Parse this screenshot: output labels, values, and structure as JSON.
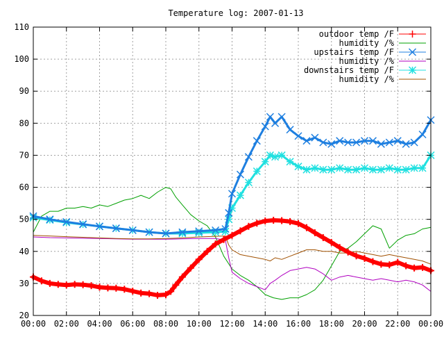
{
  "chart_data": {
    "type": "line",
    "title": "Temperature log: 2007-01-13",
    "xlabel": "",
    "ylabel": "",
    "grid": true,
    "legend_position": "top-right",
    "xlim": [
      0,
      24
    ],
    "ylim": [
      20,
      110
    ],
    "x_ticks": [
      "00:00",
      "02:00",
      "04:00",
      "06:00",
      "08:00",
      "10:00",
      "12:00",
      "14:00",
      "16:00",
      "18:00",
      "20:00",
      "22:00",
      "00:00"
    ],
    "y_ticks": [
      "20",
      "30",
      "40",
      "50",
      "60",
      "70",
      "80",
      "90",
      "100",
      "110"
    ],
    "series": [
      {
        "name": "outdoor temp /F",
        "color": "#ff0000",
        "style": "thick-line-plus",
        "x": [
          0,
          0.5,
          1,
          1.5,
          2,
          2.5,
          3,
          3.5,
          4,
          4.5,
          5,
          5.5,
          6,
          6.5,
          7,
          7.5,
          8,
          8.3,
          8.6,
          9,
          9.5,
          10,
          10.5,
          11,
          11.5,
          12,
          12.5,
          13,
          13.5,
          14,
          14.5,
          15,
          15.5,
          16,
          16.5,
          17,
          17.5,
          18,
          18.5,
          19,
          19.5,
          20,
          20.5,
          21,
          21.5,
          22,
          22.5,
          23,
          23.5,
          24
        ],
        "y": [
          32,
          30.8,
          30,
          29.7,
          29.5,
          29.7,
          29.6,
          29.3,
          28.8,
          28.6,
          28.5,
          28.2,
          27.6,
          27,
          26.8,
          26.3,
          26.5,
          27.5,
          29.5,
          32,
          34.8,
          37.5,
          40,
          42.3,
          43.7,
          45,
          46.4,
          47.8,
          48.8,
          49.5,
          49.7,
          49.6,
          49.3,
          48.7,
          47.4,
          45.8,
          44.3,
          42.8,
          41.2,
          39.8,
          38.6,
          37.8,
          36.8,
          36,
          35.8,
          36.6,
          35.5,
          34.8,
          35,
          34
        ]
      },
      {
        "name": "humidity /%",
        "color": "#00a000",
        "style": "thin",
        "x": [
          0,
          0.5,
          1,
          1.5,
          2,
          2.5,
          3,
          3.5,
          4,
          4.5,
          5,
          5.5,
          6,
          6.5,
          7,
          7.5,
          8,
          8.3,
          8.6,
          9,
          9.5,
          10,
          10.5,
          11,
          11.5,
          12,
          12.5,
          13,
          13.5,
          14,
          14.5,
          15,
          15.5,
          16,
          16.5,
          17,
          17.5,
          18,
          18.5,
          19,
          19.5,
          20,
          20.5,
          21,
          21.5,
          22,
          22.5,
          23,
          23.5,
          24
        ],
        "y": [
          46,
          51,
          52.5,
          52.5,
          53.5,
          53.5,
          54,
          53.5,
          54.5,
          54,
          55,
          56,
          56.5,
          57.5,
          56.5,
          58.5,
          60,
          59.5,
          57,
          54.5,
          51.5,
          49.5,
          48,
          44.5,
          38.5,
          34.5,
          32.5,
          31,
          29,
          26.5,
          25.5,
          25,
          25.5,
          25.5,
          26.5,
          28,
          31,
          35.5,
          40,
          41,
          43,
          45.5,
          48,
          47,
          41,
          43.5,
          45,
          45.5,
          47,
          47.5
        ]
      },
      {
        "name": "upstairs temp /F",
        "color": "#1e7fe0",
        "style": "thick-line-x",
        "x": [
          0,
          1,
          2,
          3,
          4,
          5,
          6,
          7,
          8,
          9,
          10,
          11,
          11.6,
          11.8,
          12,
          12.5,
          13,
          13.5,
          14,
          14.3,
          14.6,
          15,
          15.5,
          16,
          16.5,
          17,
          17.5,
          18,
          18.5,
          19,
          19.5,
          20,
          20.5,
          21,
          21.5,
          22,
          22.5,
          23,
          23.5,
          24
        ],
        "y": [
          51,
          50,
          49.2,
          48.5,
          47.8,
          47.2,
          46.6,
          46,
          45.6,
          46,
          46.3,
          46.6,
          47,
          52,
          58,
          64,
          69.5,
          74.5,
          79,
          82,
          80,
          82,
          78,
          76,
          74.5,
          75.5,
          74,
          73.5,
          74.5,
          74,
          74,
          74.5,
          74.5,
          73.5,
          74,
          74.5,
          73.5,
          74,
          76.5,
          81
        ]
      },
      {
        "name": "humidity /%",
        "color": "#b000c0",
        "style": "thin",
        "x": [
          0,
          1,
          2,
          3,
          4,
          5,
          6,
          7,
          8,
          9,
          10,
          11,
          11.6,
          11.8,
          12,
          12.5,
          13,
          13.5,
          14,
          14.3,
          14.6,
          15,
          15.5,
          16,
          16.5,
          17,
          17.5,
          18,
          18.5,
          19,
          19.5,
          20,
          20.5,
          21,
          21.5,
          22,
          22.5,
          23,
          23.5,
          24
        ],
        "y": [
          44.5,
          44.3,
          44.2,
          44.1,
          44,
          43.9,
          43.8,
          43.8,
          43.8,
          43.9,
          44,
          44,
          43.5,
          38,
          33.5,
          31.5,
          30,
          29,
          28,
          30,
          31,
          32.5,
          34,
          34.5,
          35,
          34.5,
          33,
          31,
          32,
          32.5,
          32,
          31.5,
          31,
          31.5,
          31,
          30.5,
          31,
          30.5,
          29.5,
          27.5
        ]
      },
      {
        "name": "downstairs temp /F",
        "color": "#20e0e0",
        "style": "thick-line-star",
        "x": [
          0,
          1,
          2,
          3,
          4,
          5,
          6,
          7,
          8,
          9,
          10,
          11,
          11.6,
          11.8,
          12,
          12.5,
          13,
          13.5,
          14,
          14.3,
          14.6,
          15,
          15.5,
          16,
          16.5,
          17,
          17.5,
          18,
          18.5,
          19,
          19.5,
          20,
          20.5,
          21,
          21.5,
          22,
          22.5,
          23,
          23.5,
          24
        ],
        "y": [
          50.5,
          49.8,
          49,
          48.4,
          47.8,
          47.2,
          46.6,
          46,
          45.6,
          45.6,
          45.8,
          46,
          46.2,
          50,
          53.5,
          57.5,
          61.5,
          65,
          68,
          70,
          69.5,
          70,
          68,
          66.5,
          65.5,
          66,
          65.5,
          65.5,
          66,
          65.5,
          65.5,
          66,
          65.5,
          65.5,
          66,
          65.5,
          65.5,
          66,
          66,
          70
        ]
      },
      {
        "name": "humidity /%",
        "color": "#a05000",
        "style": "thin",
        "x": [
          0,
          1,
          2,
          3,
          4,
          5,
          6,
          7,
          8,
          9,
          10,
          11,
          11.6,
          11.8,
          12,
          12.5,
          13,
          13.5,
          14,
          14.3,
          14.6,
          15,
          15.5,
          16,
          16.5,
          17,
          17.5,
          18,
          18.5,
          19,
          19.5,
          20,
          20.5,
          21,
          21.5,
          22,
          22.5,
          23,
          23.5,
          24
        ],
        "y": [
          45,
          44.8,
          44.6,
          44.4,
          44.2,
          44,
          43.9,
          43.9,
          44,
          44.2,
          44.5,
          44.7,
          44.8,
          42,
          40.5,
          39,
          38.5,
          38,
          37.5,
          37,
          38,
          37.5,
          38.5,
          39.5,
          40.5,
          40.5,
          40,
          40,
          39.5,
          39.5,
          40,
          39.5,
          39,
          38.5,
          39,
          38.5,
          38,
          37.5,
          37,
          36
        ]
      }
    ]
  }
}
